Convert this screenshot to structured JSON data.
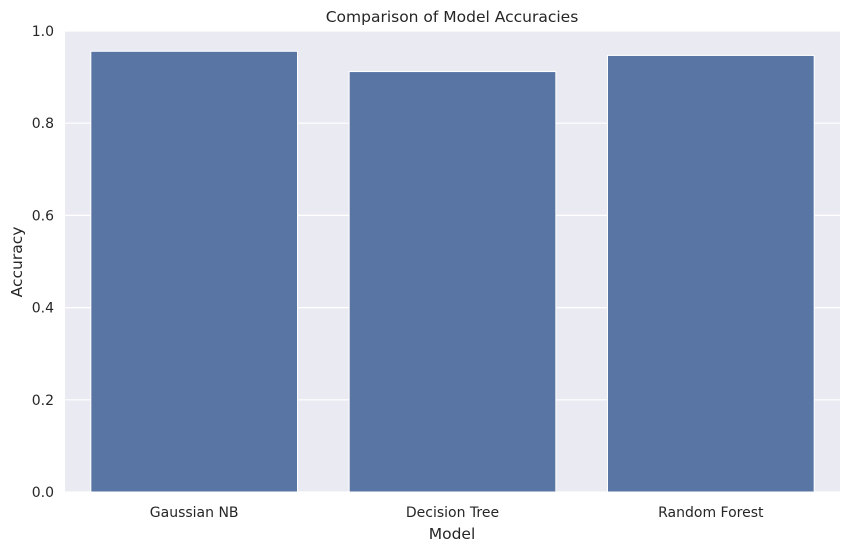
{
  "chart_data": {
    "type": "bar",
    "title": "Comparison of Model Accuracies",
    "xlabel": "Model",
    "ylabel": "Accuracy",
    "categories": [
      "Gaussian NB",
      "Decision Tree",
      "Random Forest"
    ],
    "values": [
      0.956,
      0.912,
      0.947
    ],
    "ylim": [
      0,
      1.0
    ],
    "yticks": [
      0.0,
      0.2,
      0.4,
      0.6,
      0.8,
      1.0
    ],
    "ytick_labels": [
      "0.0",
      "0.2",
      "0.4",
      "0.6",
      "0.8",
      "1.0"
    ],
    "grid": true,
    "bar_color": "#5875a4",
    "plot_background": "#eaeaf2",
    "grid_color": "#ffffff"
  }
}
